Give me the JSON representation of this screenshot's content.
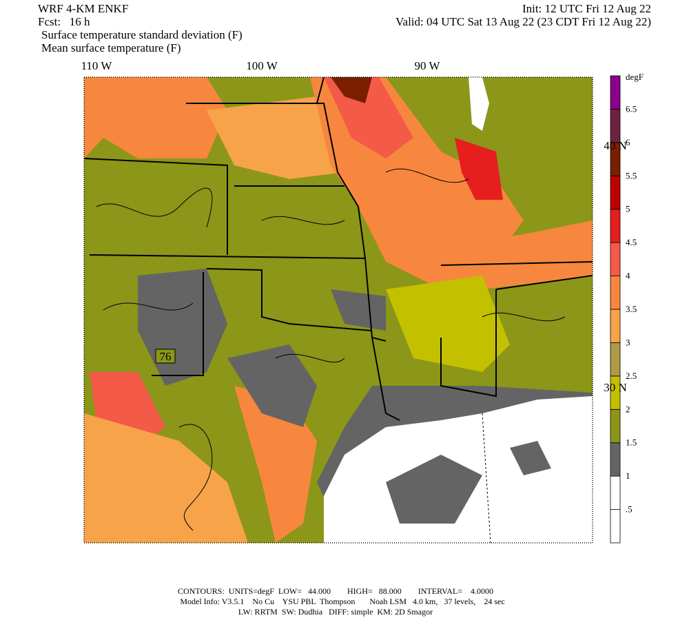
{
  "header": {
    "model": "WRF 4-KM ENKF",
    "init": "Init: 12 UTC Fri 12 Aug 22",
    "fcst": "Fcst:   16 h",
    "valid": "Valid: 04 UTC Sat 13 Aug 22 (23 CDT Fri 12 Aug 22)",
    "field1": "Surface temperature standard deviation (F)",
    "field2": "Mean surface temperature (F)"
  },
  "map": {
    "lon_labels": [
      "110 W",
      "100 W",
      "90 W"
    ],
    "lat_labels": [
      "40 N",
      "30 N"
    ],
    "contour_label": "76"
  },
  "colorbar": {
    "unit": "degF",
    "labels": [
      ".5",
      "1",
      "1.5",
      "2",
      "2.5",
      "3",
      "3.5",
      "4",
      "4.5",
      "5",
      "5.5",
      "6",
      "6.5"
    ],
    "colors": [
      "#ffffff",
      "#ffffff",
      "#646464",
      "#8c9618",
      "#c3c000",
      "#b09a48",
      "#f7a34a",
      "#f7873e",
      "#f45a48",
      "#e61e1e",
      "#c00000",
      "#7a1e00",
      "#6e2240",
      "#8b008b"
    ]
  },
  "footer": {
    "line1": "CONTOURS:  UNITS=degF  LOW=   44.000        HIGH=   88.000        INTERVAL=    4.0000",
    "line2": "Model Info: V3.5.1    No Cu    YSU PBL  Thompson       Noah LSM   4.0 km,   37 levels,    24 sec",
    "line3": "LW: RRTM  SW: Dudhia   DIFF: simple  KM: 2D Smagor"
  }
}
